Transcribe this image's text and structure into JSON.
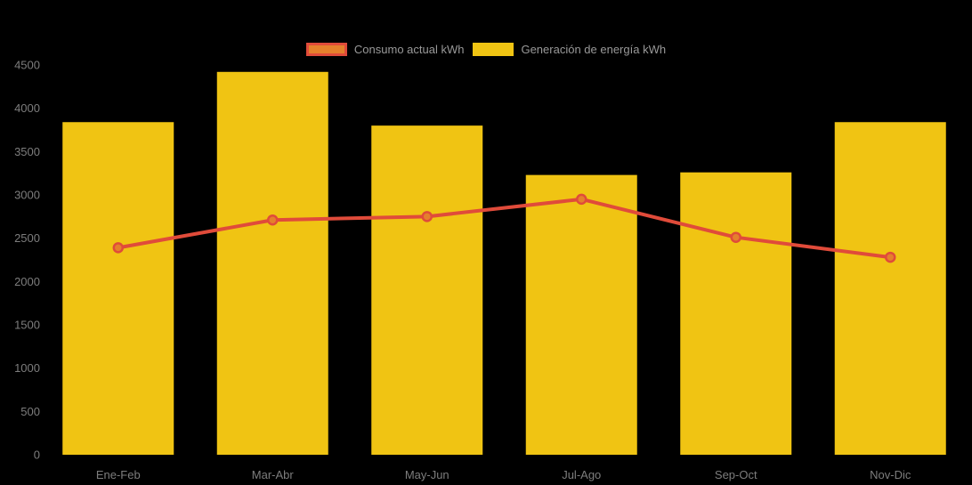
{
  "page": {
    "background_color": "#000000"
  },
  "legend": {
    "position": "top",
    "text_color": "#999999",
    "items": [
      {
        "label": "Consumo actual kWh",
        "swatch_fill": "#E5802C",
        "swatch_border": "#E04B3A"
      },
      {
        "label": "Generación de energía kWh",
        "swatch_fill": "#F0C413",
        "swatch_border": "#F0C413"
      }
    ]
  },
  "chart_data": {
    "type": "bar+line",
    "categories": [
      "Ene-Feb",
      "Mar-Abr",
      "May-Jun",
      "Jul-Ago",
      "Sep-Oct",
      "Nov-Dic"
    ],
    "series": [
      {
        "name": "Consumo actual kWh",
        "type": "line",
        "line_color": "#E04B3A",
        "point_fill": "#E5802C",
        "values": [
          2390,
          2710,
          2750,
          2950,
          2510,
          2280
        ]
      },
      {
        "name": "Generación de energía kWh",
        "type": "bar",
        "bar_color": "#F0C413",
        "values": [
          3840,
          4420,
          3800,
          3230,
          3260,
          3840
        ]
      }
    ],
    "title": "",
    "xlabel": "",
    "ylabel": "",
    "ylim": [
      0,
      4500
    ],
    "ytick_step": 500,
    "ytick_labels": [
      "0",
      "500",
      "1000",
      "1500",
      "2000",
      "2500",
      "3000",
      "3500",
      "4000",
      "4500"
    ],
    "grid": false,
    "axis_label_color": "#7d7d7d",
    "legend_position": "top"
  }
}
